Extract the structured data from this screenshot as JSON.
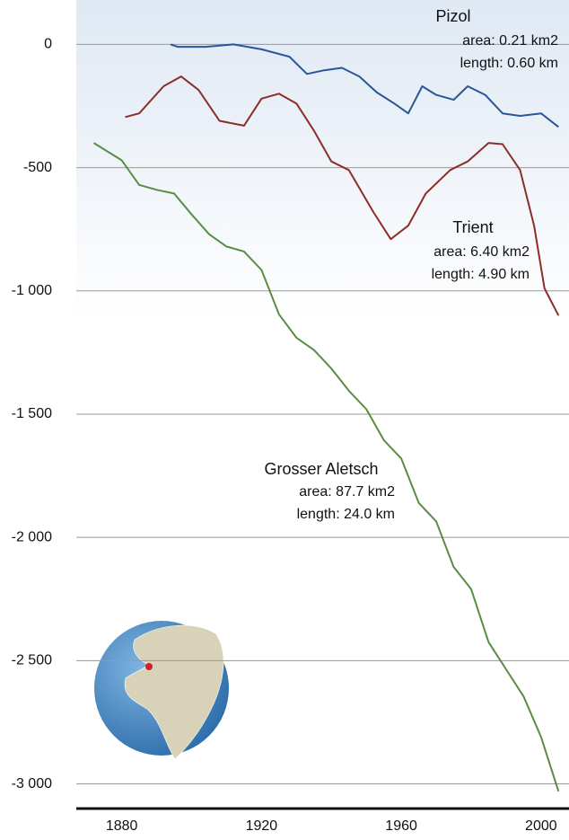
{
  "chart_data": {
    "type": "line",
    "xlim": [
      1867,
      2008
    ],
    "xticks": [
      1880,
      1920,
      1960,
      2000
    ],
    "ylim": [
      -3100,
      180
    ],
    "yticks": [
      0,
      -500,
      {
        "value": -1000,
        "label": "-1 000"
      },
      {
        "value": -1500,
        "label": "-1 500"
      },
      {
        "value": -2000,
        "label": "-2 000"
      },
      {
        "value": -2500,
        "label": "-2 500"
      },
      {
        "value": -3000,
        "label": "-3 000"
      }
    ],
    "grid": true,
    "series": [
      {
        "name": "Pizol",
        "details": [
          "area: 0.21 km2",
          "length: 0.60 km"
        ],
        "color": "#2a5699",
        "x": [
          1894,
          1896,
          1904,
          1912,
          1920,
          1928,
          1933,
          1938,
          1943,
          1948,
          1953,
          1958,
          1962,
          1966,
          1970,
          1975,
          1979,
          1984,
          1989,
          1994,
          2000,
          2005
        ],
        "values": [
          0,
          -10,
          -10,
          0,
          -20,
          -50,
          -120,
          -105,
          -95,
          -130,
          -195,
          -240,
          -280,
          -170,
          -205,
          -225,
          -170,
          -205,
          -280,
          -290,
          -280,
          -335
        ]
      },
      {
        "name": "Trient",
        "details": [
          "area: 6.40 km2",
          "length: 4.90 km"
        ],
        "color": "#8b2e2a",
        "x": [
          1881,
          1885,
          1892,
          1897,
          1902,
          1908,
          1915,
          1920,
          1925,
          1930,
          1935,
          1940,
          1945,
          1952,
          1957,
          1962,
          1967,
          1974,
          1979,
          1985,
          1989,
          1994,
          1998,
          2001,
          2005
        ],
        "values": [
          -295,
          -280,
          -170,
          -130,
          -185,
          -310,
          -330,
          -220,
          -200,
          -240,
          -350,
          -475,
          -510,
          -680,
          -790,
          -735,
          -605,
          -510,
          -475,
          -400,
          -405,
          -510,
          -735,
          -990,
          -1100
        ]
      },
      {
        "name": "Grosser Aletsch",
        "details": [
          "area: 87.7 km2",
          "length: 24.0 km"
        ],
        "color": "#5b8c43",
        "x": [
          1872,
          1880,
          1885,
          1890,
          1895,
          1900,
          1905,
          1910,
          1915,
          1920,
          1925,
          1930,
          1935,
          1940,
          1945,
          1950,
          1955,
          1960,
          1965,
          1970,
          1975,
          1980,
          1985,
          1990,
          1995,
          2000,
          2005
        ],
        "values": [
          -400,
          -470,
          -570,
          -590,
          -605,
          -690,
          -770,
          -820,
          -840,
          -915,
          -1095,
          -1190,
          -1240,
          -1315,
          -1405,
          -1480,
          -1605,
          -1680,
          -1860,
          -1935,
          -2120,
          -2210,
          -2425,
          -2535,
          -2645,
          -2810,
          -3030
        ]
      }
    ]
  }
}
